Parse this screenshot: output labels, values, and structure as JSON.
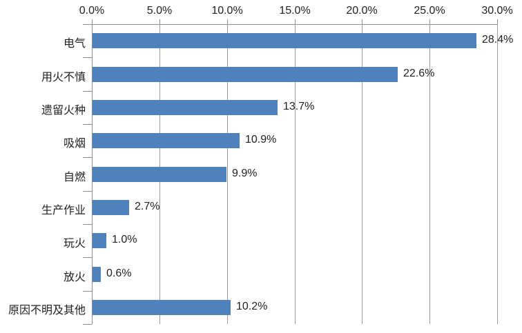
{
  "chart_data": {
    "type": "bar",
    "orientation": "horizontal",
    "title": "",
    "xlabel": "",
    "ylabel": "",
    "legend": false,
    "grid": true,
    "axis": {
      "position": "top",
      "tick_labels": [
        "0.0%",
        "5.0%",
        "10.0%",
        "15.0%",
        "20.0%",
        "25.0%",
        "30.0%"
      ],
      "tick_values": [
        0,
        5,
        10,
        15,
        20,
        25,
        30
      ],
      "min": 0,
      "max": 30
    },
    "categories": [
      "电气",
      "用火不慎",
      "遗留火种",
      "吸烟",
      "自燃",
      "生产作业",
      "玩火",
      "放火",
      "原因不明及其他"
    ],
    "values": [
      28.4,
      22.6,
      13.7,
      10.9,
      9.9,
      2.7,
      1.0,
      0.6,
      10.2
    ],
    "value_labels": [
      "28.4%",
      "22.6%",
      "13.7%",
      "10.9%",
      "9.9%",
      "2.7%",
      "1.0%",
      "0.6%",
      "10.2%"
    ],
    "colors": {
      "bar": "#4f81bd",
      "gridline": "#9a9a9a",
      "axis": "#8c8c8c",
      "text": "#212121",
      "background": "#ffffff"
    }
  }
}
